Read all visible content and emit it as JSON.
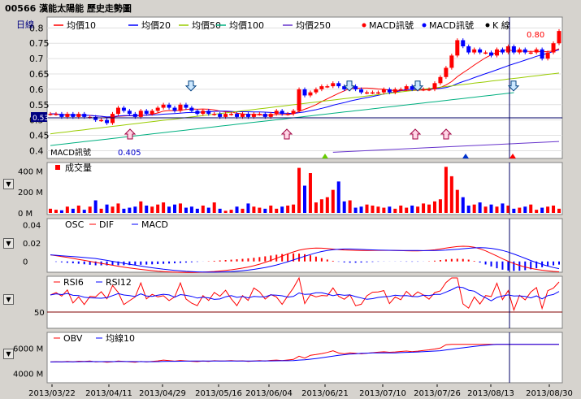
{
  "title": "00566 漢能太陽能  歷史走勢圖",
  "window_controls": {
    "volume_toggle": "▼",
    "macd_toggle": "▼",
    "rsi_toggle": "▼",
    "obv_toggle": "▼"
  },
  "colors": {
    "bg": "#d6d3ce",
    "plot_bg": "#ffffff",
    "up": "#ff0000",
    "down": "#0000ff",
    "ma10": "#ff0000",
    "ma20": "#0000ff",
    "ma50": "#99cc00",
    "ma100": "#00b080",
    "ma250": "#6633cc",
    "crosshair": "#000066"
  },
  "price_panel": {
    "period_label": "日線",
    "legend": [
      {
        "label": "均價10",
        "color": "#ff0000"
      },
      {
        "label": "均價20",
        "color": "#0000ff"
      },
      {
        "label": "均價50",
        "color": "#99cc00"
      },
      {
        "label": "均價100",
        "color": "#00b080"
      },
      {
        "label": "均價250",
        "color": "#6633cc"
      },
      {
        "label": "MACD訊號",
        "color": "#ff0000"
      },
      {
        "label": "MACD訊號",
        "color": "#0000ff"
      },
      {
        "label": "K 線",
        "color": "#000000"
      }
    ],
    "y_ticks": [
      "0.8",
      "0.75",
      "0.7",
      "0.65",
      "0.6",
      "0.55",
      "0.5",
      "0.45",
      "0.4"
    ],
    "current_value_marker": "0.53",
    "high_label": "0.80",
    "low_label": "0.405",
    "macd_signal_label": "MACD訊號"
  },
  "volume_panel": {
    "legend": "成交量",
    "y_ticks": [
      "400 M",
      "200 M",
      "0 M"
    ]
  },
  "macd_panel": {
    "legend": [
      "OSC",
      "DIF",
      "MACD"
    ],
    "y_ticks": [
      "0.04",
      "0.02",
      "0"
    ]
  },
  "rsi_panel": {
    "legend": [
      "RSI6",
      "RSI12"
    ],
    "y_ticks": [
      "50"
    ]
  },
  "obv_panel": {
    "legend": [
      "OBV",
      "均線10"
    ],
    "y_ticks": [
      "6000 M",
      "4000 M"
    ]
  },
  "x_ticks": [
    "2013/03/22",
    "2013/04/11",
    "2013/04/29",
    "2013/05/16",
    "2013/06/04",
    "2013/06/21",
    "2013/07/10",
    "2013/07/26",
    "2013/08/13",
    "2013/08/30"
  ],
  "chart_data": [
    {
      "type": "candlestick",
      "series": [
        {
          "name": "K 線"
        }
      ],
      "close_approx": [
        0.52,
        0.52,
        0.51,
        0.52,
        0.51,
        0.52,
        0.51,
        0.51,
        0.5,
        0.5,
        0.49,
        0.52,
        0.54,
        0.53,
        0.52,
        0.51,
        0.53,
        0.52,
        0.53,
        0.54,
        0.55,
        0.54,
        0.53,
        0.55,
        0.54,
        0.53,
        0.52,
        0.53,
        0.52,
        0.52,
        0.51,
        0.52,
        0.52,
        0.51,
        0.52,
        0.51,
        0.52,
        0.52,
        0.51,
        0.52,
        0.53,
        0.52,
        0.52,
        0.53,
        0.6,
        0.58,
        0.59,
        0.6,
        0.61,
        0.61,
        0.62,
        0.61,
        0.6,
        0.61,
        0.6,
        0.59,
        0.59,
        0.59,
        0.59,
        0.6,
        0.59,
        0.6,
        0.6,
        0.61,
        0.6,
        0.6,
        0.6,
        0.6,
        0.62,
        0.64,
        0.67,
        0.71,
        0.76,
        0.74,
        0.72,
        0.73,
        0.72,
        0.72,
        0.71,
        0.73,
        0.72,
        0.74,
        0.72,
        0.73,
        0.72,
        0.72,
        0.73,
        0.7,
        0.72,
        0.75,
        0.79
      ],
      "ylim": [
        0.38,
        0.83
      ],
      "high": 0.8,
      "low": 0.405
    },
    {
      "type": "bar",
      "title": "成交量",
      "ylim": [
        0,
        450
      ],
      "volume_m_approx": [
        40,
        30,
        25,
        60,
        40,
        70,
        30,
        60,
        120,
        40,
        80,
        60,
        90,
        40,
        50,
        60,
        110,
        70,
        60,
        80,
        100,
        60,
        80,
        90,
        50,
        60,
        40,
        70,
        50,
        100,
        40,
        20,
        30,
        60,
        40,
        90,
        60,
        50,
        40,
        70,
        40,
        60,
        70,
        80,
        430,
        260,
        380,
        100,
        130,
        150,
        220,
        300,
        110,
        120,
        50,
        60,
        80,
        70,
        60,
        50,
        60,
        40,
        70,
        50,
        70,
        60,
        90,
        80,
        110,
        130,
        440,
        350,
        220,
        150,
        70,
        80,
        100,
        60,
        80,
        60,
        90,
        70,
        40,
        50,
        60,
        80,
        30,
        50,
        60,
        70,
        40
      ],
      "ticks": [
        "400 M",
        "200 M",
        "0 M"
      ]
    },
    {
      "type": "line",
      "series": [
        {
          "name": "DIF"
        },
        {
          "name": "MACD"
        },
        {
          "name": "OSC"
        }
      ],
      "ylim": [
        -0.01,
        0.045
      ],
      "ticks": [
        "0.04",
        "0.02",
        "0"
      ]
    },
    {
      "type": "line",
      "series": [
        {
          "name": "RSI6"
        },
        {
          "name": "RSI12"
        }
      ],
      "ticks": [
        "50"
      ]
    },
    {
      "type": "line",
      "series": [
        {
          "name": "OBV"
        },
        {
          "name": "均線10"
        }
      ],
      "ticks": [
        "6000 M",
        "4000 M"
      ]
    }
  ]
}
